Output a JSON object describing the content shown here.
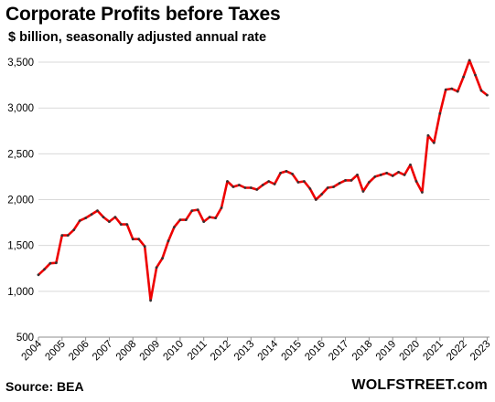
{
  "header": {
    "title": "Corporate Profits before Taxes",
    "subtitle": "$ billion, seasonally adjusted annual rate"
  },
  "footer": {
    "source": "Source: BEA",
    "brand": "WOLFSTREET.com"
  },
  "colors": {
    "line": "#ee0000",
    "markers": "#333333",
    "grid": "#d9d9d9",
    "axis": "#8c8c8c"
  },
  "chart_data": {
    "type": "line",
    "title": "Corporate Profits before Taxes",
    "subtitle": "$ billion, seasonally adjusted annual rate",
    "ylim": [
      500,
      3600
    ],
    "yticks": [
      500,
      1000,
      1500,
      2000,
      2500,
      3000,
      3500
    ],
    "ytick_labels": [
      "500",
      "1,000",
      "1,500",
      "2,000",
      "2,500",
      "3,000",
      "3,500"
    ],
    "xlim": [
      2004,
      2023.1
    ],
    "xticks": [
      2004,
      2005,
      2006,
      2007,
      2008,
      2009,
      2010,
      2011,
      2012,
      2013,
      2014,
      2015,
      2016,
      2017,
      2018,
      2019,
      2020,
      2021,
      2022,
      2023
    ],
    "xtick_labels": [
      "2004",
      "2005",
      "2006",
      "2007",
      "2008",
      "2009",
      "2010",
      "2011",
      "2012",
      "2013",
      "2014",
      "2015",
      "2016",
      "2017",
      "2018",
      "2019",
      "2020",
      "2021",
      "2022",
      "2023"
    ],
    "grid": "horizontal",
    "series": [
      {
        "x": [
          2004.0,
          2004.25,
          2004.5,
          2004.75,
          2005.0,
          2005.25,
          2005.5,
          2005.75,
          2006.0,
          2006.25,
          2006.5,
          2006.75,
          2007.0,
          2007.25,
          2007.5,
          2007.75,
          2008.0,
          2008.25,
          2008.5,
          2008.75,
          2009.0,
          2009.25,
          2009.5,
          2009.75,
          2010.0,
          2010.25,
          2010.5,
          2010.75,
          2011.0,
          2011.25,
          2011.5,
          2011.75,
          2012.0,
          2012.25,
          2012.5,
          2012.75,
          2013.0,
          2013.25,
          2013.5,
          2013.75,
          2014.0,
          2014.25,
          2014.5,
          2014.75,
          2015.0,
          2015.25,
          2015.5,
          2015.75,
          2016.0,
          2016.25,
          2016.5,
          2016.75,
          2017.0,
          2017.25,
          2017.5,
          2017.75,
          2018.0,
          2018.25,
          2018.5,
          2018.75,
          2019.0,
          2019.25,
          2019.5,
          2019.75,
          2020.0,
          2020.25,
          2020.5,
          2020.75,
          2021.0,
          2021.25,
          2021.5,
          2021.75,
          2022.0,
          2022.25,
          2022.5,
          2022.75,
          2023.0
        ],
        "y": [
          1180,
          1240,
          1305,
          1310,
          1610,
          1610,
          1670,
          1770,
          1800,
          1840,
          1880,
          1810,
          1760,
          1810,
          1730,
          1730,
          1570,
          1570,
          1490,
          900,
          1260,
          1360,
          1550,
          1700,
          1780,
          1780,
          1880,
          1890,
          1760,
          1810,
          1800,
          1910,
          2200,
          2140,
          2160,
          2130,
          2130,
          2110,
          2160,
          2200,
          2170,
          2290,
          2310,
          2280,
          2190,
          2200,
          2120,
          2000,
          2060,
          2130,
          2140,
          2180,
          2210,
          2210,
          2270,
          2090,
          2190,
          2250,
          2270,
          2290,
          2260,
          2300,
          2270,
          2380,
          2200,
          2080,
          2700,
          2620,
          2940,
          3200,
          3210,
          3180,
          3340,
          3520,
          3360,
          3190,
          3140
        ]
      }
    ]
  }
}
